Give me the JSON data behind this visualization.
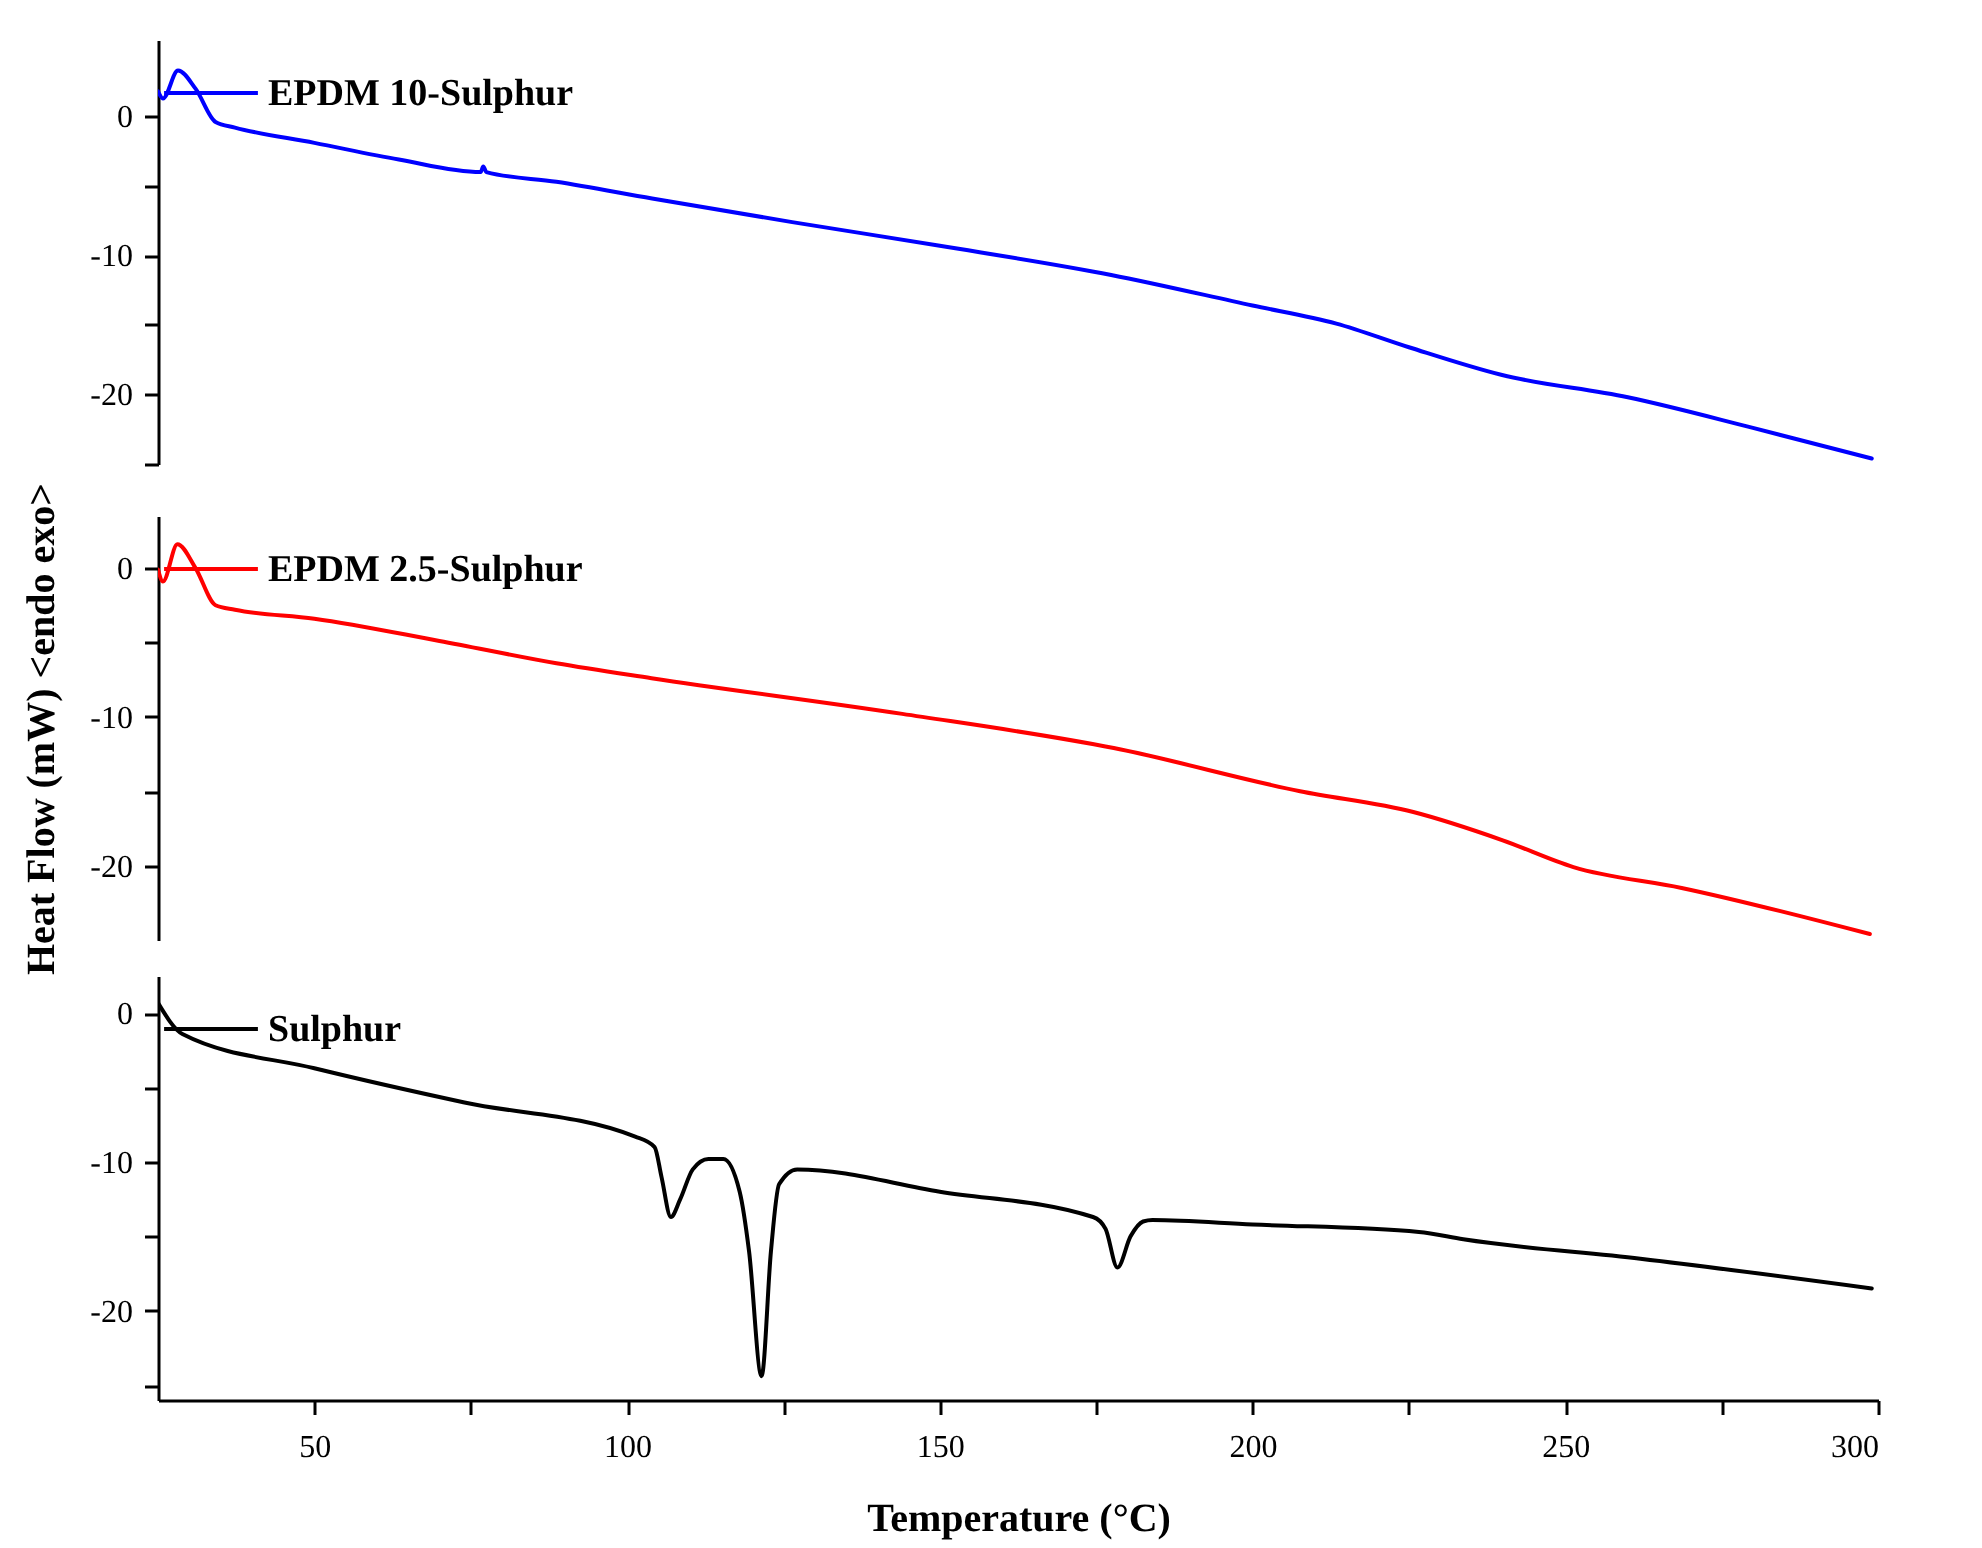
{
  "chart_data": [
    {
      "type": "line",
      "xlim": [
        25,
        300
      ],
      "ylim": [
        -25,
        5.5
      ],
      "yticks": [
        0,
        -10,
        -20,
        {
          "value": -5,
          "label": null
        },
        {
          "value": -15,
          "label": null
        },
        {
          "value": -25,
          "label": null
        }
      ],
      "tick_labels": "y",
      "legend": "top left",
      "series": [
        {
          "name": "EPDM 10-Sulphur",
          "color": "#0000ff",
          "x": [
            25,
            25.8,
            28.2,
            31,
            34.2,
            37.3,
            50,
            63.5,
            76.6,
            77,
            77.5,
            88.7,
            104,
            126.4,
            150,
            177.4,
            200,
            213.4,
            225,
            239.9,
            260,
            280,
            299
          ],
          "values": [
            1.8,
            1.3,
            3.3,
            2,
            -0.4,
            -0.8,
            -1.9,
            -3.1,
            -4,
            -3.6,
            -4,
            -4.7,
            -5.9,
            -7.6,
            -9.3,
            -11.4,
            -13.6,
            -14.9,
            -16.6,
            -18.6,
            -20.2,
            -22.4,
            -24.6
          ]
        }
      ]
    },
    {
      "type": "line",
      "xlim": [
        25,
        300
      ],
      "ylim": [
        -25,
        3.5
      ],
      "yticks": [
        0,
        -10,
        -20,
        {
          "value": -5,
          "label": null
        },
        {
          "value": -15,
          "label": null
        }
      ],
      "tick_labels": "y",
      "legend": "top left",
      "ylabel": "Heat Flow (mW) <endo exo>",
      "series": [
        {
          "name": "EPDM 2.5-Sulphur",
          "color": "#ff0000",
          "x": [
            25,
            25.8,
            28.1,
            31,
            34.2,
            37.3,
            50,
            70,
            88.7,
            103.9,
            144,
            177.8,
            207.6,
            225.7,
            240,
            251.3,
            268.6,
            298.7
          ],
          "values": [
            -0.1,
            -0.9,
            1.6,
            0,
            -2.5,
            -2.8,
            -3.4,
            -4.9,
            -6.4,
            -7.4,
            -9.8,
            -12.1,
            -15,
            -16.4,
            -18.3,
            -20.1,
            -21.5,
            -24.6
          ]
        }
      ]
    },
    {
      "type": "line",
      "xlim": [
        25,
        300
      ],
      "xticks": [
        50,
        100,
        150,
        200,
        250,
        300,
        {
          "value": 75,
          "label": null
        },
        {
          "value": 125,
          "label": null
        },
        {
          "value": 175,
          "label": null
        },
        {
          "value": 225,
          "label": null
        },
        {
          "value": 275,
          "label": null
        }
      ],
      "ylim": [
        -26,
        2.5
      ],
      "yticks": [
        0,
        -10,
        -20,
        {
          "value": -5,
          "label": null
        },
        {
          "value": -15,
          "label": null
        },
        {
          "value": -25,
          "label": null
        }
      ],
      "legend": "top left",
      "xlabel": "Temperature (°C)",
      "series": [
        {
          "name": "Sulphur",
          "color": "#000000",
          "x": [
            25,
            28.9,
            50,
            74,
            101.3,
            104.4,
            105.5,
            107,
            108.5,
            110.5,
            113,
            115.4,
            118,
            119.5,
            121.5,
            123,
            124.3,
            127.2,
            150,
            174.5,
            176.5,
            178.4,
            180.5,
            182.5,
            184,
            200,
            226.6,
            233.7,
            262,
            299
          ],
          "values": [
            0.7,
            -1.4,
            -3.7,
            -6,
            -8.3,
            -9,
            -11,
            -13.7,
            -12.5,
            -10.5,
            -9.8,
            -9.8,
            -12,
            -16,
            -24.4,
            -16,
            -11.5,
            -10.5,
            -12,
            -13.7,
            -14.5,
            -17.1,
            -15,
            -14,
            -13.9,
            -14.2,
            -14.7,
            -15.2,
            -16.5,
            -18.5
          ]
        }
      ]
    }
  ]
}
